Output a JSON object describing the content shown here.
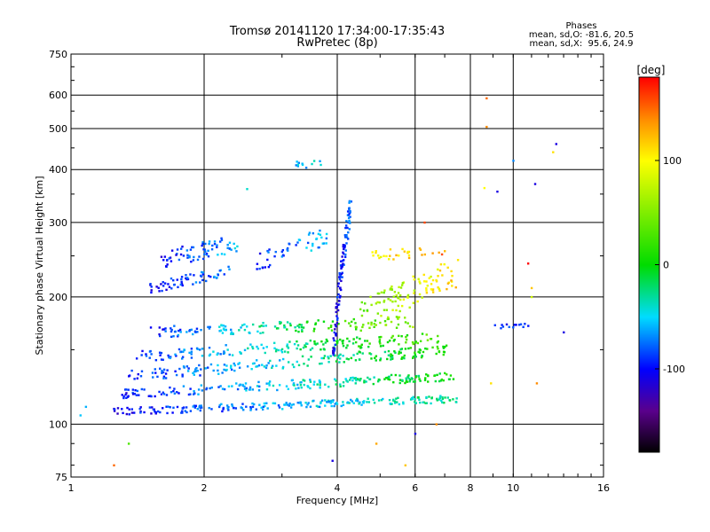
{
  "header": {
    "title_line1": "Tromsø 20141120 17:34:00-17:35:43",
    "title_line2": "RwPretec (8p)"
  },
  "stats": {
    "title": "Phases",
    "line_o": "mean, sd,O: -81.6, 20.5",
    "line_x": "mean, sd,X:  95.6, 24.9"
  },
  "colorbar": {
    "label": "[deg]",
    "ticks": [
      {
        "value": 100,
        "label": "100"
      },
      {
        "value": 0,
        "label": "0"
      },
      {
        "value": -100,
        "label": "-100"
      }
    ],
    "range": [
      -180,
      180
    ]
  },
  "chart_data": {
    "type": "scatter",
    "title": "Tromsø 20141120 17:34:00-17:35:43",
    "subtitle": "RwPretec (8p)",
    "xlabel": "Frequency [MHz]",
    "ylabel": "Stationary phase Virtual Height [km]",
    "x_scale": "log",
    "y_scale": "log",
    "xlim": [
      1,
      16
    ],
    "ylim": [
      75,
      750
    ],
    "x_ticks": [
      1,
      2,
      4,
      6,
      8,
      10,
      16
    ],
    "y_ticks": [
      75,
      100,
      200,
      300,
      400,
      500,
      600,
      750
    ],
    "x_gridlines": [
      2,
      4,
      6,
      8,
      10
    ],
    "y_gridlines": [
      100,
      200,
      300,
      400,
      500,
      600
    ],
    "grid": true,
    "color_variable": "Phase [deg]",
    "traces": [
      {
        "x_range": [
          1.25,
          7.5
        ],
        "h_start": 107,
        "h_end": 115,
        "phase_start": -105,
        "phase_end": -20,
        "points": 230,
        "spread": 0.02
      },
      {
        "x_range": [
          1.3,
          7.4
        ],
        "h_start": 118,
        "h_end": 130,
        "phase_start": -100,
        "phase_end": 5,
        "points": 210,
        "spread": 0.025
      },
      {
        "x_range": [
          1.35,
          7.2
        ],
        "h_start": 130,
        "h_end": 150,
        "phase_start": -98,
        "phase_end": 15,
        "points": 190,
        "spread": 0.03
      },
      {
        "x_range": [
          1.4,
          6.8
        ],
        "h_start": 145,
        "h_end": 160,
        "phase_start": -95,
        "phase_end": 35,
        "points": 170,
        "spread": 0.03
      },
      {
        "x_range": [
          1.5,
          6.0
        ],
        "h_start": 165,
        "h_end": 175,
        "phase_start": -100,
        "phase_end": 60,
        "points": 140,
        "spread": 0.03
      },
      {
        "x_range": [
          1.5,
          2.3
        ],
        "h_start": 210,
        "h_end": 230,
        "phase_start": -105,
        "phase_end": -70,
        "points": 60,
        "spread": 0.03
      },
      {
        "x_range": [
          1.6,
          2.4
        ],
        "h_start": 245,
        "h_end": 270,
        "phase_start": -100,
        "phase_end": -60,
        "points": 70,
        "spread": 0.05
      },
      {
        "x_range": [
          2.6,
          3.8
        ],
        "h_start": 240,
        "h_end": 280,
        "phase_start": -95,
        "phase_end": -55,
        "points": 50,
        "spread": 0.05
      },
      {
        "x_range": [
          3.9,
          4.3
        ],
        "h_start": 140,
        "h_end": 330,
        "phase_start": -110,
        "phase_end": -80,
        "points": 110,
        "spread": 0.08
      },
      {
        "x_range": [
          4.5,
          7.5
        ],
        "h_start": 180,
        "h_end": 230,
        "phase_start": 40,
        "phase_end": 120,
        "points": 110,
        "spread": 0.08
      },
      {
        "x_range": [
          4.8,
          7.0
        ],
        "h_start": 250,
        "h_end": 260,
        "phase_start": 100,
        "phase_end": 140,
        "points": 30,
        "spread": 0.03
      },
      {
        "x_range": [
          3.2,
          3.7
        ],
        "h_start": 410,
        "h_end": 415,
        "phase_start": -60,
        "phase_end": -50,
        "points": 12,
        "spread": 0.02
      },
      {
        "x_range": [
          9.0,
          11.0
        ],
        "h_start": 170,
        "h_end": 172,
        "phase_start": -100,
        "phase_end": -90,
        "points": 14,
        "spread": 0.01
      }
    ],
    "scattered_points": [
      {
        "x": 8.7,
        "y": 590,
        "phase": 150
      },
      {
        "x": 8.7,
        "y": 505,
        "phase": 140
      },
      {
        "x": 12.5,
        "y": 460,
        "phase": -110
      },
      {
        "x": 12.3,
        "y": 440,
        "phase": 110
      },
      {
        "x": 10.0,
        "y": 420,
        "phase": -70
      },
      {
        "x": 2.5,
        "y": 360,
        "phase": -40
      },
      {
        "x": 9.2,
        "y": 355,
        "phase": -110
      },
      {
        "x": 11.2,
        "y": 370,
        "phase": -110
      },
      {
        "x": 8.6,
        "y": 362,
        "phase": 100
      },
      {
        "x": 6.3,
        "y": 300,
        "phase": 160
      },
      {
        "x": 10.8,
        "y": 240,
        "phase": 180
      },
      {
        "x": 11.0,
        "y": 210,
        "phase": 120
      },
      {
        "x": 11.0,
        "y": 200,
        "phase": 80
      },
      {
        "x": 13.0,
        "y": 165,
        "phase": -110
      },
      {
        "x": 1.08,
        "y": 110,
        "phase": -60
      },
      {
        "x": 1.05,
        "y": 105,
        "phase": -55
      },
      {
        "x": 1.35,
        "y": 90,
        "phase": 30
      },
      {
        "x": 1.25,
        "y": 80,
        "phase": 150
      },
      {
        "x": 3.9,
        "y": 82,
        "phase": -110
      },
      {
        "x": 5.7,
        "y": 80,
        "phase": 120
      },
      {
        "x": 4.9,
        "y": 90,
        "phase": 130
      },
      {
        "x": 6.0,
        "y": 95,
        "phase": -110
      },
      {
        "x": 6.7,
        "y": 100,
        "phase": 140
      },
      {
        "x": 8.9,
        "y": 125,
        "phase": 110
      },
      {
        "x": 11.3,
        "y": 125,
        "phase": 140
      }
    ]
  }
}
